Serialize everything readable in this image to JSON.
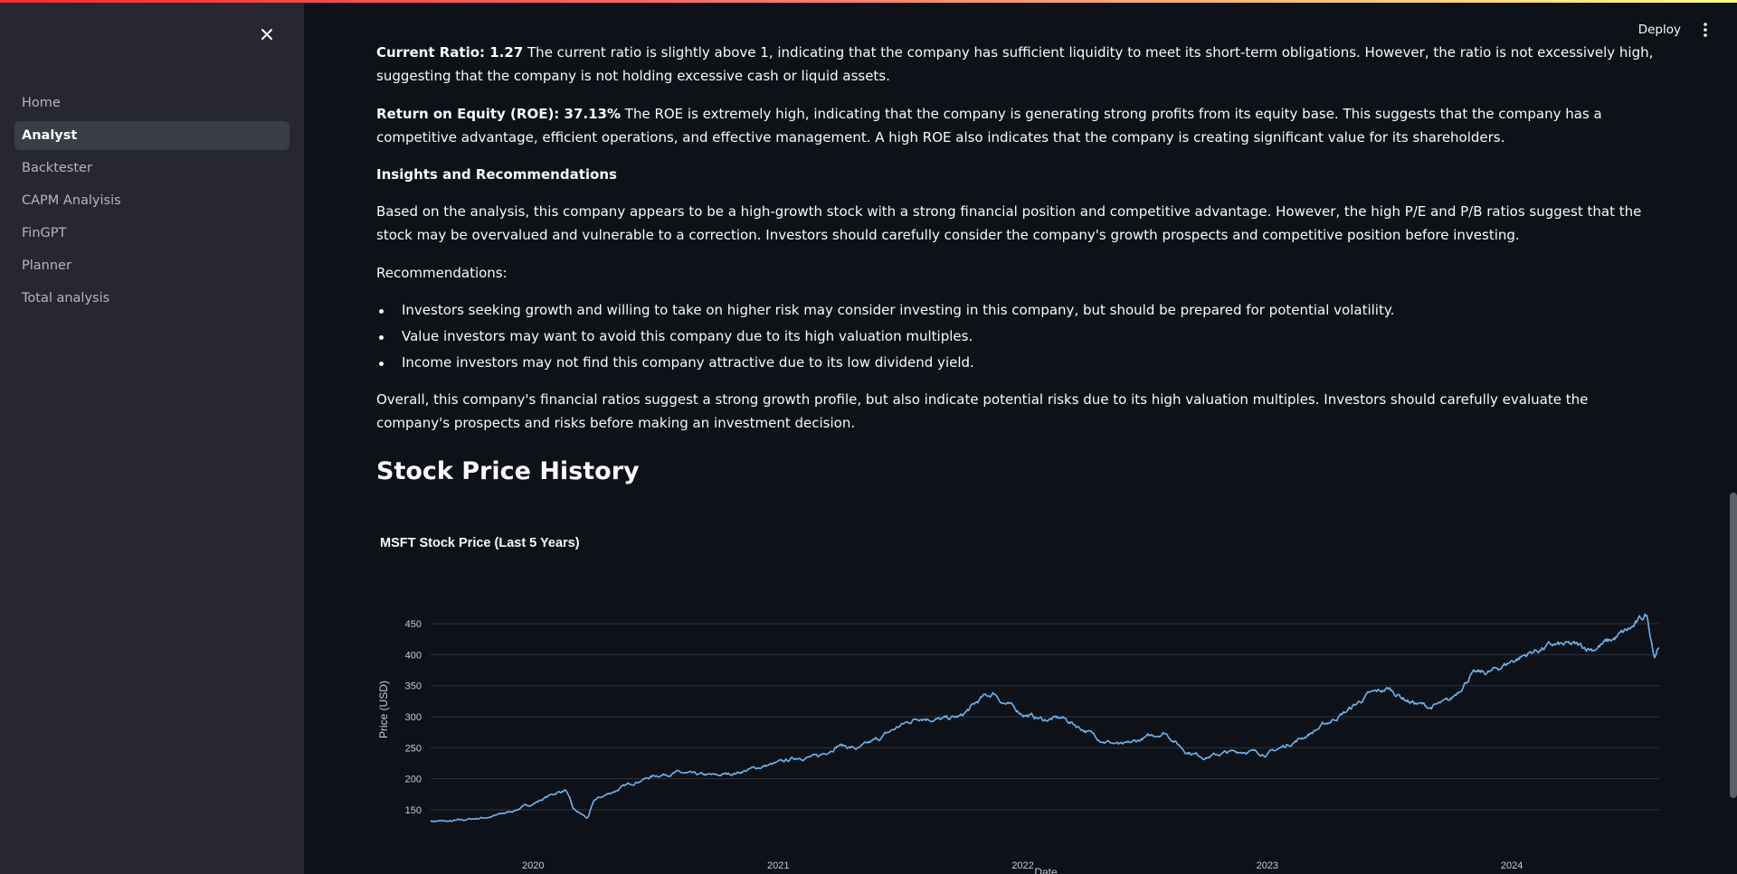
{
  "app": {
    "deploy_label": "Deploy"
  },
  "sidebar": {
    "items": [
      {
        "label": "Home",
        "active": false
      },
      {
        "label": "Analyst",
        "active": true
      },
      {
        "label": "Backtester",
        "active": false
      },
      {
        "label": "CAPM Analyisis",
        "active": false
      },
      {
        "label": "FinGPT",
        "active": false
      },
      {
        "label": "Planner",
        "active": false
      },
      {
        "label": "Total analysis",
        "active": false
      }
    ]
  },
  "report": {
    "current_ratio": {
      "label": "Current Ratio: 1.27",
      "text": " The current ratio is slightly above 1, indicating that the company has sufficient liquidity to meet its short-term obligations. However, the ratio is not excessively high, suggesting that the company is not holding excessive cash or liquid assets."
    },
    "roe": {
      "label": "Return on Equity (ROE): 37.13%",
      "text": " The ROE is extremely high, indicating that the company is generating strong profits from its equity base. This suggests that the company has a competitive advantage, efficient operations, and effective management. A high ROE also indicates that the company is creating significant value for its shareholders."
    },
    "insights_heading": "Insights and Recommendations",
    "insights_text": "Based on the analysis, this company appears to be a high-growth stock with a strong financial position and competitive advantage. However, the high P/E and P/B ratios suggest that the stock may be overvalued and vulnerable to a correction. Investors should carefully consider the company's growth prospects and competitive position before investing.",
    "recommendations_label": "Recommendations:",
    "recommendations": [
      "Investors seeking growth and willing to take on higher risk may consider investing in this company, but should be prepared for potential volatility.",
      "Value investors may want to avoid this company due to its high valuation multiples.",
      "Income investors may not find this company attractive due to its low dividend yield."
    ],
    "overall_text": "Overall, this company's financial ratios suggest a strong growth profile, but also indicate potential risks due to its high valuation multiples. Investors should carefully evaluate the company's prospects and risks before making an investment decision.",
    "section_heading": "Stock Price History"
  },
  "colors": {
    "line": "#6cb4f0",
    "grid": "#31333f",
    "axis_text": "#c9cbd3"
  },
  "chart_data": {
    "type": "line",
    "title": "MSFT Stock Price (Last 5 Years)",
    "xlabel": "Date",
    "ylabel": "Price (USD)",
    "x_ticks": [
      "2020",
      "2021",
      "2022",
      "2023",
      "2024"
    ],
    "y_ticks": [
      150,
      200,
      250,
      300,
      350,
      400,
      450
    ],
    "xlim": [
      "2019-08-01",
      "2024-08-08"
    ],
    "ylim": [
      128,
      472
    ],
    "grid": true,
    "series": [
      {
        "x": [
          "2019-08-01",
          "2019-09-01",
          "2019-10-01",
          "2019-11-01",
          "2019-12-01",
          "2020-01-01",
          "2020-02-01",
          "2020-02-19",
          "2020-03-01",
          "2020-03-23",
          "2020-04-01",
          "2020-05-01",
          "2020-06-01",
          "2020-07-01",
          "2020-08-01",
          "2020-09-01",
          "2020-10-01",
          "2020-11-01",
          "2020-12-01",
          "2021-01-01",
          "2021-02-01",
          "2021-03-01",
          "2021-04-01",
          "2021-05-01",
          "2021-06-01",
          "2021-07-01",
          "2021-08-01",
          "2021-09-01",
          "2021-10-01",
          "2021-11-01",
          "2021-11-20",
          "2021-12-01",
          "2022-01-01",
          "2022-02-01",
          "2022-03-01",
          "2022-04-01",
          "2022-05-01",
          "2022-06-01",
          "2022-07-01",
          "2022-08-01",
          "2022-09-01",
          "2022-10-01",
          "2022-11-01",
          "2022-12-01",
          "2023-01-01",
          "2023-02-01",
          "2023-03-01",
          "2023-04-01",
          "2023-05-01",
          "2023-06-01",
          "2023-07-01",
          "2023-08-01",
          "2023-09-01",
          "2023-10-01",
          "2023-11-01",
          "2023-12-01",
          "2024-01-01",
          "2024-02-01",
          "2024-03-01",
          "2024-04-01",
          "2024-05-01",
          "2024-06-01",
          "2024-07-01",
          "2024-07-20",
          "2024-08-01",
          "2024-08-08"
        ],
        "values": [
          132,
          131,
          135,
          139,
          148,
          160,
          176,
          182,
          150,
          136,
          165,
          180,
          195,
          205,
          210,
          206,
          205,
          210,
          218,
          225,
          235,
          235,
          255,
          248,
          265,
          285,
          300,
          295,
          300,
          330,
          338,
          325,
          305,
          295,
          298,
          280,
          262,
          253,
          265,
          275,
          245,
          235,
          242,
          245,
          240,
          255,
          270,
          290,
          310,
          335,
          345,
          325,
          315,
          325,
          368,
          372,
          390,
          405,
          415,
          415,
          410,
          425,
          445,
          465,
          400,
          418
        ]
      }
    ]
  }
}
